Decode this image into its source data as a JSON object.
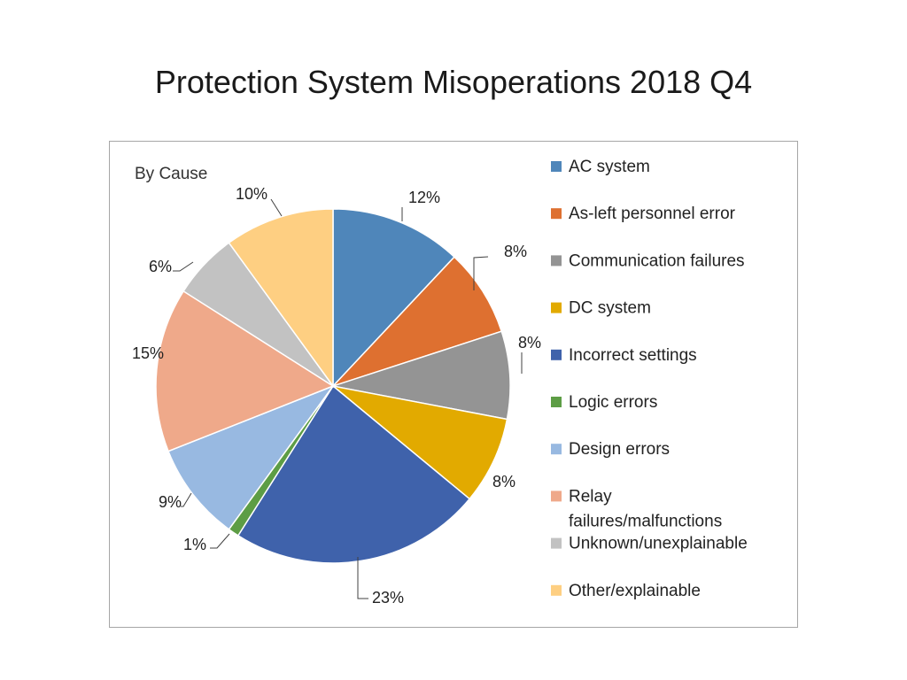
{
  "page": {
    "title": "Protection System Misoperations 2018 Q4"
  },
  "chart_data": {
    "type": "pie",
    "subtitle": "By Cause",
    "legend_position": "right",
    "slices": [
      {
        "name": "AC system",
        "value": 12,
        "label": "12%",
        "color": "#4F86BA"
      },
      {
        "name": "As-left personnel error",
        "value": 8,
        "label": "8%",
        "color": "#DE7030"
      },
      {
        "name": "Communication failures",
        "value": 8,
        "label": "8%",
        "color": "#949494"
      },
      {
        "name": "DC system",
        "value": 8,
        "label": "8%",
        "color": "#E2AA00"
      },
      {
        "name": "Incorrect settings",
        "value": 23,
        "label": "23%",
        "color": "#3F62AB"
      },
      {
        "name": "Logic errors",
        "value": 1,
        "label": "1%",
        "color": "#5D9D45"
      },
      {
        "name": "Design errors",
        "value": 9,
        "label": "9%",
        "color": "#98B9E1"
      },
      {
        "name": "Relay failures/malfunctions",
        "value": 15,
        "label": "15%",
        "color": "#EFA98A"
      },
      {
        "name": "Unknown/unexplainable",
        "value": 6,
        "label": "6%",
        "color": "#C2C2C2"
      },
      {
        "name": "Other/explainable",
        "value": 10,
        "label": "10%",
        "color": "#FECF82"
      }
    ],
    "legend_lines": {
      "Relay failures/malfunctions": [
        "Relay",
        "failures/malfunctions"
      ]
    }
  }
}
